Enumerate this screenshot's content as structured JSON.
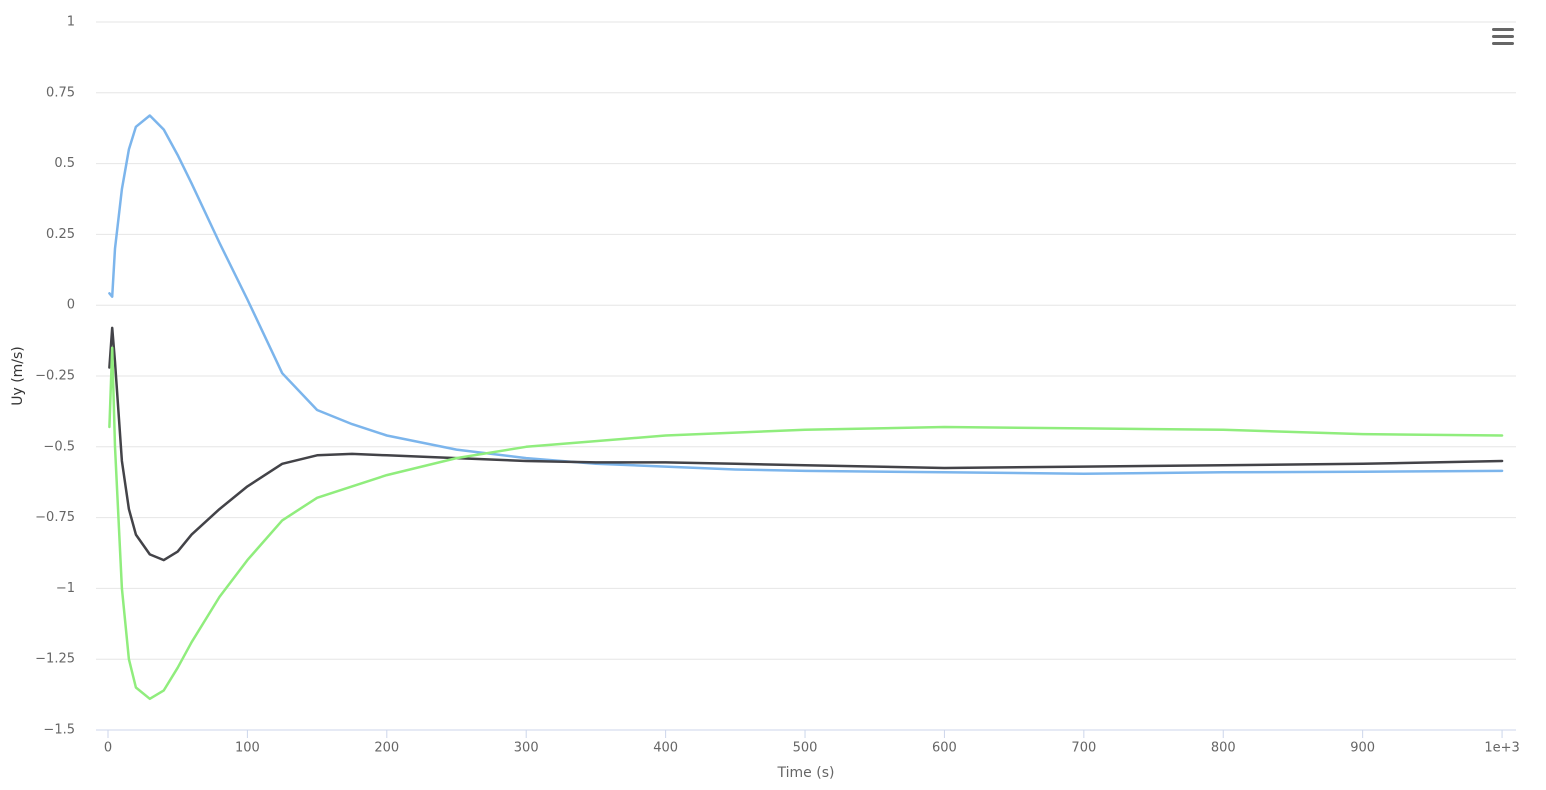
{
  "chart_data": {
    "type": "line",
    "x_label": "Time (s)",
    "y_label": "Uy (m/s)",
    "x": [
      1,
      3,
      5,
      10,
      15,
      20,
      30,
      40,
      50,
      60,
      80,
      100,
      125,
      150,
      175,
      200,
      250,
      300,
      350,
      400,
      450,
      500,
      600,
      700,
      800,
      900,
      1000
    ],
    "series": [
      {
        "color": "#7cb5ec",
        "values": [
          0.042,
          0.03,
          0.2,
          0.41,
          0.55,
          0.63,
          0.67,
          0.62,
          0.53,
          0.43,
          0.22,
          0.02,
          -0.24,
          -0.37,
          -0.42,
          -0.46,
          -0.51,
          -0.54,
          -0.56,
          -0.57,
          -0.58,
          -0.585,
          -0.59,
          -0.595,
          -0.59,
          -0.588,
          -0.585
        ]
      },
      {
        "color": "#434348",
        "values": [
          -0.22,
          -0.08,
          -0.2,
          -0.55,
          -0.72,
          -0.81,
          -0.88,
          -0.9,
          -0.87,
          -0.81,
          -0.72,
          -0.64,
          -0.56,
          -0.53,
          -0.525,
          -0.53,
          -0.54,
          -0.55,
          -0.555,
          -0.555,
          -0.56,
          -0.565,
          -0.575,
          -0.57,
          -0.565,
          -0.56,
          -0.55
        ]
      },
      {
        "color": "#90ed7d",
        "values": [
          -0.43,
          -0.15,
          -0.5,
          -1.0,
          -1.25,
          -1.35,
          -1.39,
          -1.36,
          -1.28,
          -1.19,
          -1.03,
          -0.9,
          -0.76,
          -0.68,
          -0.64,
          -0.6,
          -0.54,
          -0.5,
          -0.48,
          -0.46,
          -0.45,
          -0.44,
          -0.43,
          -0.435,
          -0.44,
          -0.455,
          -0.46
        ]
      }
    ],
    "xlim": [
      -8.6,
      1010
    ],
    "xticks": [
      0,
      100,
      200,
      300,
      400,
      500,
      600,
      700,
      800,
      900,
      {
        "value": 1000,
        "label": "1e+3"
      }
    ],
    "ylim": [
      -1.5,
      1
    ],
    "yticks": [
      {
        "value": -1.5,
        "label": "−1.5"
      },
      {
        "value": -1.25,
        "label": "−1.25"
      },
      {
        "value": -1,
        "label": "−1"
      },
      {
        "value": -0.75,
        "label": "−0.75"
      },
      {
        "value": -0.5,
        "label": "−0.5"
      },
      {
        "value": -0.25,
        "label": "−0.25"
      },
      0,
      0.25,
      0.5,
      0.75,
      1
    ],
    "grid": true
  }
}
